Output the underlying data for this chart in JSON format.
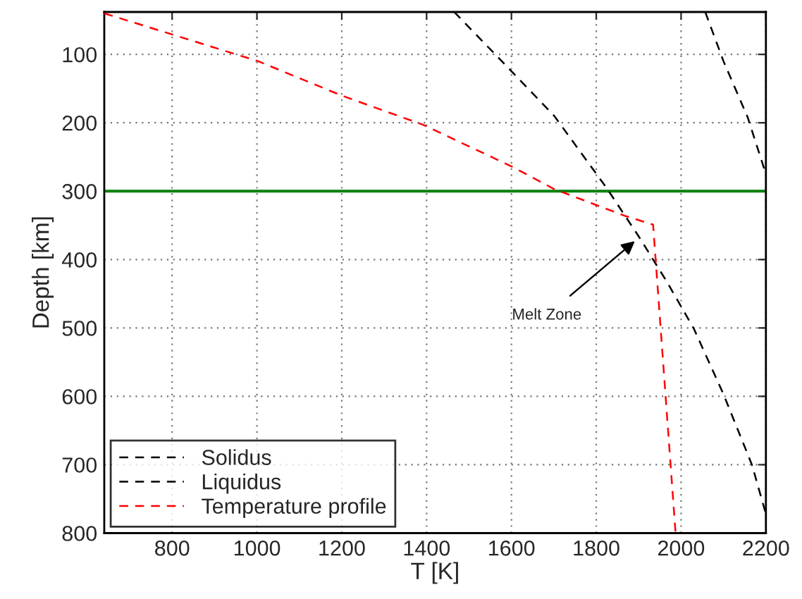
{
  "chart_data": {
    "type": "line",
    "xlabel": "T [K]",
    "ylabel": "Depth [km]",
    "xlim": [
      640,
      2200
    ],
    "ylim": [
      800,
      38
    ],
    "xticks": [
      800,
      1000,
      1200,
      1400,
      1600,
      1800,
      2000,
      2200
    ],
    "yticks": [
      100,
      200,
      300,
      400,
      500,
      600,
      700,
      800
    ],
    "grid": true,
    "legend": "bottom left",
    "line_style": "dashed",
    "marker": "none",
    "series": [
      {
        "name": "Solidus",
        "color": "#000000",
        "x": [
          1465,
          1568,
          1701,
          1824,
          1901,
          1967,
          2030,
          2100,
          2167,
          2200
        ],
        "values": [
          38,
          104,
          190,
          295,
          367,
          433,
          501,
          597,
          700,
          772
        ]
      },
      {
        "name": "Liquidus",
        "color": "#000000",
        "x": [
          2057,
          2100,
          2157,
          2200
        ],
        "values": [
          38,
          110,
          192,
          275
        ]
      },
      {
        "name": "Temperature profile",
        "color": "#ff0000",
        "x": [
          640,
          1003,
          1199,
          1392,
          1601,
          1701,
          1867,
          1934,
          1987
        ],
        "values": [
          40,
          110,
          160,
          203,
          264,
          297,
          336,
          349,
          800
        ]
      }
    ],
    "ref_lines": [
      {
        "axis": "y",
        "value": 300,
        "color": "#008000",
        "line_style": "solid"
      }
    ],
    "annotations": [
      {
        "text": "Melt Zone",
        "x": 1891,
        "y": 373
      }
    ]
  }
}
